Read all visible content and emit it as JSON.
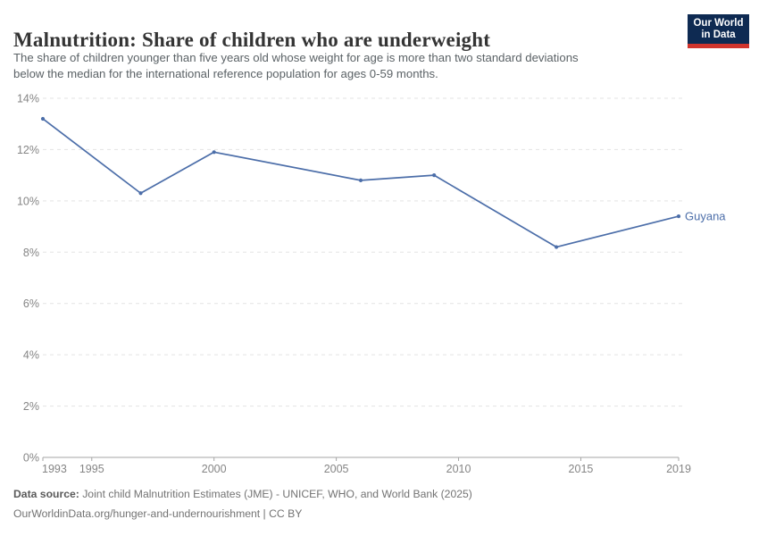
{
  "header": {
    "title": "Malnutrition: Share of children who are underweight",
    "subtitle_line1": "The share of children younger than five years old whose weight for age is more than two standard deviations",
    "subtitle_line2": "below the median for the international reference population for ages 0-59 months.",
    "logo_line1": "Our World",
    "logo_line2": "in Data"
  },
  "chart_data": {
    "type": "line",
    "title": "Malnutrition: Share of children who are underweight",
    "x_ticks": [
      1993,
      1995,
      2000,
      2005,
      2010,
      2015,
      2019
    ],
    "y_ticks": [
      0,
      2,
      4,
      6,
      8,
      10,
      12,
      14
    ],
    "xlim": [
      1993,
      2019
    ],
    "ylim": [
      0,
      14
    ],
    "y_tick_suffix": "%",
    "grid": "horizontal-dashed",
    "legend": "end-of-line-label",
    "series": [
      {
        "name": "Guyana",
        "color": "#4c6ea9",
        "x": [
          1993,
          1997,
          2000,
          2006,
          2009,
          2014,
          2019
        ],
        "values": [
          13.2,
          10.3,
          11.9,
          10.8,
          11.0,
          8.2,
          9.4
        ]
      }
    ]
  },
  "footer": {
    "data_source_label": "Data source:",
    "data_source_text": " Joint child Malnutrition Estimates (JME) - UNICEF, WHO, and World Bank (2025)",
    "attribution": "OurWorldinData.org/hunger-and-undernourishment | CC BY"
  },
  "colors": {
    "line": "#4c6ea9",
    "grid": "#e3e3e3",
    "axis": "#a5a5a5",
    "logo_bg": "#0e2a52",
    "logo_bar": "#d0342c"
  }
}
